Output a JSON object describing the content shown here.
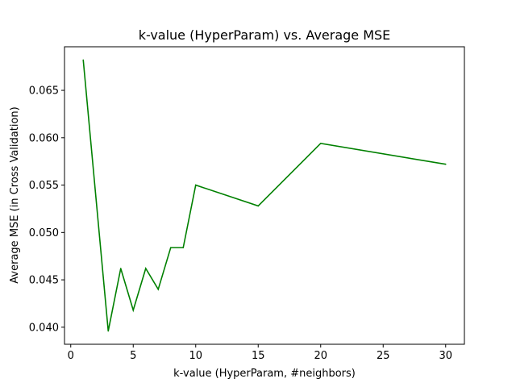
{
  "chart_data": {
    "type": "line",
    "title": "k-value (HyperParam) vs. Average MSE",
    "xlabel": "k-value (HyperParam, #neighbors)",
    "ylabel": "Average MSE (in Cross Validation)",
    "xlim": [
      -0.5,
      31.5
    ],
    "ylim": [
      0.0382,
      0.0696
    ],
    "xticks": [
      0,
      5,
      10,
      15,
      20,
      25,
      30
    ],
    "xtick_labels": [
      "0",
      "5",
      "10",
      "15",
      "20",
      "25",
      "30"
    ],
    "yticks": [
      0.04,
      0.045,
      0.05,
      0.055,
      0.06,
      0.065
    ],
    "ytick_labels": [
      "0.040",
      "0.045",
      "0.050",
      "0.055",
      "0.060",
      "0.065"
    ],
    "grid": false,
    "series": [
      {
        "color": "#008000",
        "x": [
          1,
          3,
          4,
          5,
          6,
          7,
          8,
          9,
          10,
          15,
          20,
          30
        ],
        "y": [
          0.0682,
          0.0396,
          0.0462,
          0.0418,
          0.0462,
          0.044,
          0.0484,
          0.0484,
          0.055,
          0.0528,
          0.0594,
          0.0572
        ]
      }
    ]
  }
}
